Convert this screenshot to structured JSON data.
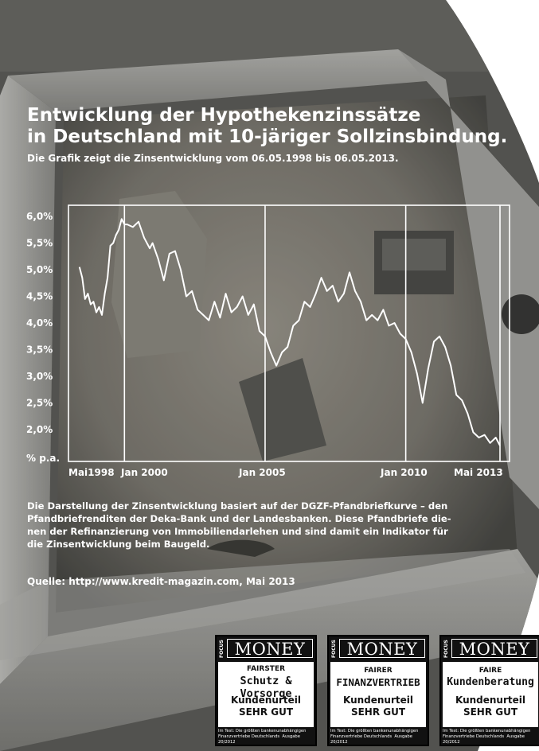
{
  "chart_data": {
    "type": "line",
    "title": "Entwicklung der Hypothekenzinssätze in Deutschland mit 10-järiger Sollzinsbindung.",
    "subtitle": "Die Grafik zeigt die Zinsentwicklung vom 06.05.1998 bis 06.05.2013.",
    "xlabel": "",
    "ylabel": "% p.a.",
    "ylim": [
      1.5,
      6.2
    ],
    "xlim": [
      1998.2,
      2013.6
    ],
    "y_ticks": [
      "6,0%",
      "5,5%",
      "5,0%",
      "4,5%",
      "4,0%",
      "3,5%",
      "3,0%",
      "2,5%",
      "2,0%"
    ],
    "y_tick_values": [
      6.0,
      5.5,
      5.0,
      4.5,
      4.0,
      3.5,
      3.0,
      2.5,
      2.0
    ],
    "x_ticks": [
      {
        "label": "Mai1998",
        "x": 1998.35
      },
      {
        "label": "Jan 2000",
        "x": 2000.0
      },
      {
        "label": "Jan 2005",
        "x": 2005.0
      },
      {
        "label": "Jan 2010",
        "x": 2010.0
      },
      {
        "label": "Mai 2013",
        "x": 2013.35
      }
    ],
    "vertical_gridlines": [
      1998.35,
      2000.0,
      2005.0,
      2010.0,
      2013.35
    ],
    "grid": true,
    "series": [
      {
        "x": [
          1998.4,
          1998.5,
          1998.6,
          1998.7,
          1998.8,
          1998.9,
          1999.0,
          1999.1,
          1999.2,
          1999.3,
          1999.4,
          1999.5,
          1999.6,
          1999.7,
          1999.8,
          1999.9,
          2000.0,
          2000.1,
          2000.3,
          2000.5,
          2000.7,
          2000.9,
          2001.0,
          2001.2,
          2001.4,
          2001.6,
          2001.8,
          2002.0,
          2002.2,
          2002.4,
          2002.6,
          2002.8,
          2003.0,
          2003.2,
          2003.4,
          2003.6,
          2003.8,
          2004.0,
          2004.2,
          2004.4,
          2004.6,
          2004.8,
          2005.0,
          2005.2,
          2005.4,
          2005.6,
          2005.8,
          2006.0,
          2006.2,
          2006.4,
          2006.6,
          2006.8,
          2007.0,
          2007.2,
          2007.4,
          2007.6,
          2007.8,
          2008.0,
          2008.2,
          2008.4,
          2008.6,
          2008.8,
          2009.0,
          2009.2,
          2009.4,
          2009.6,
          2009.8,
          2010.0,
          2010.2,
          2010.4,
          2010.6,
          2010.8,
          2011.0,
          2011.2,
          2011.4,
          2011.6,
          2011.8,
          2012.0,
          2012.2,
          2012.4,
          2012.6,
          2012.8,
          2013.0,
          2013.2,
          2013.35
        ],
        "values": [
          5.05,
          4.85,
          4.45,
          4.55,
          4.35,
          4.4,
          4.2,
          4.3,
          4.15,
          4.55,
          4.85,
          5.45,
          5.5,
          5.65,
          5.75,
          5.95,
          5.85,
          5.85,
          5.8,
          5.9,
          5.6,
          5.4,
          5.5,
          5.2,
          4.8,
          5.3,
          5.35,
          5.0,
          4.5,
          4.6,
          4.25,
          4.15,
          4.05,
          4.4,
          4.1,
          4.55,
          4.2,
          4.3,
          4.5,
          4.15,
          4.35,
          3.85,
          3.75,
          3.45,
          3.2,
          3.45,
          3.55,
          3.95,
          4.05,
          4.4,
          4.3,
          4.55,
          4.85,
          4.6,
          4.7,
          4.4,
          4.55,
          4.95,
          4.6,
          4.4,
          4.05,
          4.15,
          4.05,
          4.25,
          3.95,
          4.0,
          3.8,
          3.7,
          3.45,
          3.05,
          2.5,
          3.15,
          3.65,
          3.75,
          3.55,
          3.2,
          2.65,
          2.55,
          2.3,
          1.95,
          1.85,
          1.9,
          1.75,
          1.85,
          1.7
        ]
      }
    ]
  },
  "text": {
    "title_line1": "Entwicklung der Hypothekenzinssätze",
    "title_line2": "in Deutschland mit 10-järiger Sollzinsbindung.",
    "subtitle": "Die Grafik zeigt die Zinsentwicklung vom 06.05.1998 bis 06.05.2013.",
    "desc_lines": [
      "Die Darstellung der Zinsentwicklung basiert auf der DGZF-Pfandbriefkurve – den",
      "Pfandbriefrenditen der Deka-Bank und der Landesbanken. Diese Pfandbriefe die-",
      "nen der Refinanzierung von Immobiliendarlehen und sind damit ein Indikator für",
      "die Zinsentwicklung beim Baugeld."
    ],
    "source": "Quelle: http://www.kredit-magazin.com, Mai 2013"
  },
  "badges": [
    {
      "brand": "FOCUS",
      "logo": "MONEY",
      "line_a": "FAIRSTER",
      "line_b": "Schutz & Vorsorge",
      "line_c": "Kundenurteil",
      "line_d": "SEHR GUT",
      "foot_1": "Im Test: Die größten bankenunabhängigen",
      "foot_2": "Finanzvertriebe Deutschlands",
      "foot_3": "Ausgabe 20/2012"
    },
    {
      "brand": "FOCUS",
      "logo": "MONEY",
      "line_a": "FAIRER",
      "line_b": "FINANZVERTRIEB",
      "line_c": "Kundenurteil",
      "line_d": "SEHR GUT",
      "foot_1": "Im Test: Die größten bankenunabhängigen",
      "foot_2": "Finanzvertriebe Deutschlands",
      "foot_3": "Ausgabe 20/2012"
    },
    {
      "brand": "FOCUS",
      "logo": "MONEY",
      "line_a": "FAIRE",
      "line_b": "Kundenberatung",
      "line_c": "Kundenurteil",
      "line_d": "SEHR GUT",
      "foot_1": "Im Test: Die größten bankenunabhängigen",
      "foot_2": "Finanzvertriebe Deutschlands",
      "foot_3": "Ausgabe 20/2012"
    }
  ],
  "colors": {
    "text": "#ffffff",
    "line": "#ffffff",
    "photo_dark": "#3a3a3a",
    "photo_mid": "#8a8a84",
    "badge_bg": "#111111"
  }
}
